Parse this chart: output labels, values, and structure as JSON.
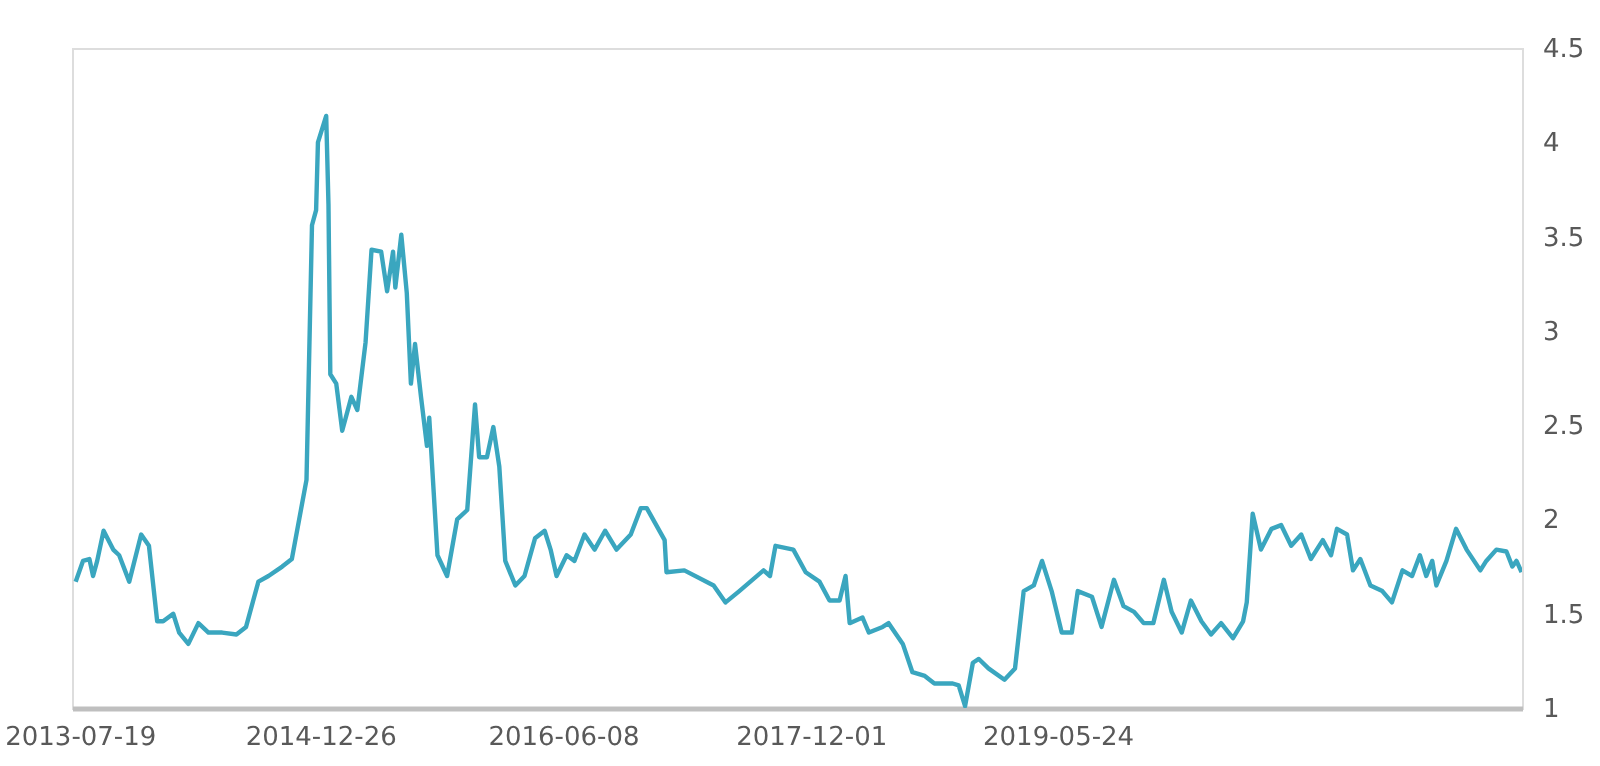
{
  "chart_data": {
    "type": "line",
    "xlim": [
      "2013-07-02",
      "2022-03-03"
    ],
    "xticks": [
      "2013-07-19",
      "2014-12-26",
      "2016-06-08",
      "2017-12-01",
      "2019-05-24"
    ],
    "ylim": [
      1,
      4.5
    ],
    "yticks": [
      1,
      1.5,
      2,
      2.5,
      3,
      3.5,
      4,
      4.5
    ],
    "grid": false,
    "marker": "none",
    "line_style": "solid",
    "series": [
      {
        "color": "#3aa6bf",
        "x": [
          "2013-07-10",
          "2013-07-26",
          "2013-08-09",
          "2013-08-17",
          "2013-08-26",
          "2013-09-09",
          "2013-09-30",
          "2013-10-13",
          "2013-11-04",
          "2013-11-30",
          "2013-12-17",
          "2014-01-04",
          "2014-01-17",
          "2014-02-08",
          "2014-02-21",
          "2014-03-13",
          "2014-04-04",
          "2014-04-26",
          "2014-05-26",
          "2014-06-26",
          "2014-07-17",
          "2014-08-13",
          "2014-09-04",
          "2014-10-04",
          "2014-10-25",
          "2014-11-26",
          "2014-12-08",
          "2014-12-17",
          "2014-12-21",
          "2015-01-08",
          "2015-01-13",
          "2015-01-17",
          "2015-01-30",
          "2015-02-12",
          "2015-03-04",
          "2015-03-17",
          "2015-04-04",
          "2015-04-17",
          "2015-05-08",
          "2015-05-21",
          "2015-06-03",
          "2015-06-08",
          "2015-06-21",
          "2015-07-03",
          "2015-07-12",
          "2015-07-21",
          "2015-08-03",
          "2015-08-16",
          "2015-08-21",
          "2015-09-08",
          "2015-09-29",
          "2015-10-21",
          "2015-11-12",
          "2015-11-29",
          "2015-12-08",
          "2015-12-25",
          "2016-01-08",
          "2016-01-21",
          "2016-02-03",
          "2016-02-25",
          "2016-03-16",
          "2016-04-08",
          "2016-04-29",
          "2016-05-12",
          "2016-05-25",
          "2016-06-16",
          "2016-07-03",
          "2016-07-25",
          "2016-08-16",
          "2016-09-08",
          "2016-10-03",
          "2016-11-03",
          "2016-11-25",
          "2016-12-08",
          "2017-01-16",
          "2017-01-20",
          "2017-02-28",
          "2017-05-03",
          "2017-05-29",
          "2017-06-28",
          "2017-08-20",
          "2017-09-03",
          "2017-09-15",
          "2017-10-24",
          "2017-11-20",
          "2017-12-20",
          "2018-01-11",
          "2018-02-02",
          "2018-02-15",
          "2018-02-24",
          "2018-03-24",
          "2018-04-07",
          "2018-05-07",
          "2018-05-20",
          "2018-06-20",
          "2018-07-11",
          "2018-08-07",
          "2018-08-28",
          "2018-10-07",
          "2018-10-20",
          "2018-11-03",
          "2018-11-20",
          "2018-12-03",
          "2018-12-24",
          "2019-01-28",
          "2019-02-20",
          "2019-03-11",
          "2019-04-02",
          "2019-04-20",
          "2019-05-11",
          "2019-06-02",
          "2019-06-24",
          "2019-07-07",
          "2019-08-07",
          "2019-08-28",
          "2019-09-24",
          "2019-10-15",
          "2019-11-07",
          "2019-11-28",
          "2019-12-19",
          "2020-01-11",
          "2020-01-28",
          "2020-02-19",
          "2020-03-10",
          "2020-04-02",
          "2020-04-23",
          "2020-05-15",
          "2020-06-10",
          "2020-07-02",
          "2020-07-10",
          "2020-07-23",
          "2020-08-10",
          "2020-09-02",
          "2020-09-23",
          "2020-10-15",
          "2020-11-06",
          "2020-11-27",
          "2020-12-23",
          "2021-01-10",
          "2021-01-23",
          "2021-02-14",
          "2021-02-27",
          "2021-03-15",
          "2021-04-06",
          "2021-05-02",
          "2021-05-23",
          "2021-06-15",
          "2021-07-06",
          "2021-07-23",
          "2021-08-06",
          "2021-08-19",
          "2021-08-28",
          "2021-09-19",
          "2021-10-10",
          "2021-11-02",
          "2021-12-02",
          "2021-12-15",
          "2022-01-06",
          "2022-01-28",
          "2022-02-10",
          "2022-02-19",
          "2022-03-02"
        ],
        "values": [
          1.67,
          1.78,
          1.79,
          1.7,
          1.78,
          1.94,
          1.84,
          1.81,
          1.67,
          1.92,
          1.86,
          1.46,
          1.46,
          1.5,
          1.4,
          1.34,
          1.45,
          1.4,
          1.4,
          1.39,
          1.43,
          1.67,
          1.7,
          1.75,
          1.79,
          2.21,
          3.56,
          3.64,
          4.0,
          4.14,
          3.67,
          2.77,
          2.72,
          2.47,
          2.65,
          2.58,
          2.94,
          3.43,
          3.42,
          3.21,
          3.42,
          3.23,
          3.51,
          3.2,
          2.72,
          2.93,
          2.65,
          2.39,
          2.54,
          1.81,
          1.7,
          2.0,
          2.05,
          2.61,
          2.33,
          2.33,
          2.49,
          2.28,
          1.78,
          1.65,
          1.7,
          1.9,
          1.94,
          1.84,
          1.7,
          1.81,
          1.78,
          1.92,
          1.84,
          1.94,
          1.84,
          1.92,
          2.06,
          2.06,
          1.89,
          1.72,
          1.73,
          1.65,
          1.56,
          1.62,
          1.73,
          1.7,
          1.86,
          1.84,
          1.72,
          1.67,
          1.57,
          1.57,
          1.7,
          1.45,
          1.48,
          1.4,
          1.43,
          1.45,
          1.34,
          1.19,
          1.17,
          1.13,
          1.13,
          1.12,
          1.01,
          1.24,
          1.26,
          1.21,
          1.15,
          1.21,
          1.62,
          1.65,
          1.78,
          1.62,
          1.4,
          1.4,
          1.62,
          1.59,
          1.43,
          1.68,
          1.54,
          1.51,
          1.45,
          1.45,
          1.68,
          1.51,
          1.4,
          1.57,
          1.46,
          1.39,
          1.45,
          1.37,
          1.46,
          1.56,
          2.03,
          1.84,
          1.95,
          1.97,
          1.86,
          1.92,
          1.79,
          1.89,
          1.81,
          1.95,
          1.92,
          1.73,
          1.79,
          1.65,
          1.62,
          1.56,
          1.73,
          1.7,
          1.81,
          1.7,
          1.78,
          1.65,
          1.78,
          1.95,
          1.84,
          1.73,
          1.78,
          1.84,
          1.83,
          1.75,
          1.78,
          1.72
        ]
      }
    ]
  }
}
